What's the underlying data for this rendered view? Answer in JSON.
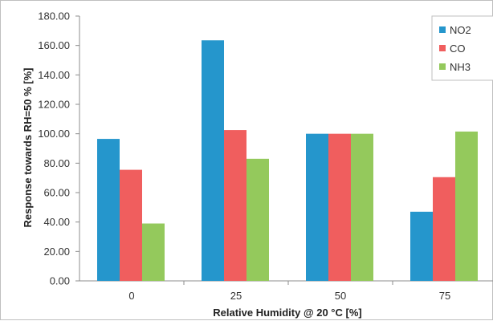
{
  "chart_data": {
    "type": "bar",
    "title": "",
    "xlabel": "Relative Humidity @ 20 °C [%]",
    "ylabel": "Response towards RH=50 % [%]",
    "categories": [
      "0",
      "25",
      "50",
      "75"
    ],
    "series": [
      {
        "name": "NO2",
        "color": "#2596cc",
        "values": [
          96.5,
          163.5,
          100.0,
          47.0
        ]
      },
      {
        "name": "CO",
        "color": "#f05e5e",
        "values": [
          75.5,
          102.5,
          100.0,
          70.5
        ]
      },
      {
        "name": "NH3",
        "color": "#94c95c",
        "values": [
          39.0,
          83.0,
          100.0,
          101.5
        ]
      }
    ],
    "ylim": [
      0,
      180
    ],
    "yticks": [
      "0.00",
      "20.00",
      "40.00",
      "60.00",
      "80.00",
      "100.00",
      "120.00",
      "140.00",
      "160.00",
      "180.00"
    ],
    "grid": false,
    "legend_position": "top-right"
  }
}
